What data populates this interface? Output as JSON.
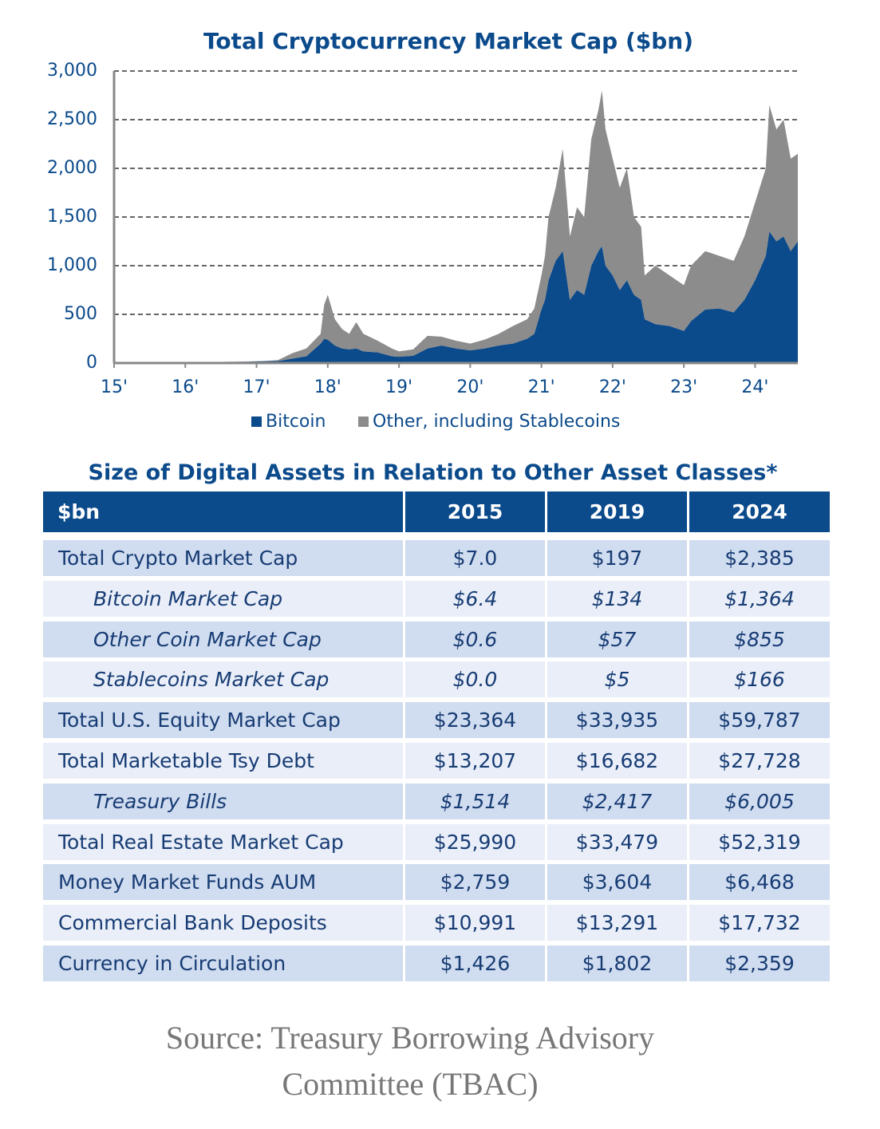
{
  "chart_data": {
    "type": "stacked_area",
    "title": "Total Cryptocurrency Market Cap ($bn)",
    "x": [
      2015.0,
      2016.0,
      2016.5,
      2017.0,
      2017.3,
      2017.5,
      2017.7,
      2017.9,
      2017.95,
      2018.0,
      2018.1,
      2018.2,
      2018.3,
      2018.4,
      2018.5,
      2018.7,
      2018.9,
      2019.0,
      2019.2,
      2019.4,
      2019.6,
      2019.8,
      2020.0,
      2020.2,
      2020.4,
      2020.6,
      2020.8,
      2020.9,
      2021.0,
      2021.05,
      2021.1,
      2021.2,
      2021.3,
      2021.4,
      2021.5,
      2021.6,
      2021.7,
      2021.8,
      2021.85,
      2021.9,
      2022.0,
      2022.1,
      2022.2,
      2022.3,
      2022.4,
      2022.45,
      2022.6,
      2022.8,
      2023.0,
      2023.1,
      2023.3,
      2023.5,
      2023.7,
      2023.85,
      2024.0,
      2024.15,
      2024.2,
      2024.3,
      2024.4,
      2024.5,
      2024.6
    ],
    "series": [
      {
        "name": "Bitcoin",
        "color": "#0b4a8b",
        "values": [
          6,
          6,
          10,
          16,
          20,
          45,
          70,
          200,
          250,
          240,
          180,
          150,
          140,
          150,
          120,
          110,
          70,
          65,
          75,
          150,
          180,
          150,
          130,
          150,
          180,
          200,
          250,
          300,
          550,
          650,
          850,
          1050,
          1150,
          650,
          750,
          700,
          1000,
          1150,
          1200,
          1000,
          900,
          750,
          850,
          700,
          650,
          450,
          400,
          380,
          330,
          430,
          550,
          560,
          520,
          650,
          850,
          1100,
          1350,
          1250,
          1300,
          1150,
          1250
        ]
      },
      {
        "name": "Other, including Stablecoins",
        "color": "#8c8c8c",
        "values": [
          1,
          1,
          2,
          2,
          10,
          55,
          80,
          100,
          350,
          460,
          270,
          200,
          160,
          270,
          180,
          120,
          80,
          55,
          65,
          130,
          90,
          80,
          70,
          90,
          120,
          180,
          200,
          260,
          350,
          450,
          650,
          750,
          1050,
          650,
          850,
          800,
          1300,
          1450,
          1600,
          1400,
          1200,
          1050,
          1150,
          800,
          750,
          450,
          600,
          520,
          470,
          570,
          600,
          540,
          530,
          650,
          800,
          900,
          1300,
          1150,
          1200,
          950,
          900
        ]
      }
    ],
    "xlim": [
      2015,
      2024.6
    ],
    "xticks": [
      {
        "value": 2015,
        "label": "15'"
      },
      {
        "value": 2016,
        "label": "16'"
      },
      {
        "value": 2017,
        "label": "17'"
      },
      {
        "value": 2018,
        "label": "18'"
      },
      {
        "value": 2019,
        "label": "19'"
      },
      {
        "value": 2020,
        "label": "20'"
      },
      {
        "value": 2021,
        "label": "21'"
      },
      {
        "value": 2022,
        "label": "22'"
      },
      {
        "value": 2023,
        "label": "23'"
      },
      {
        "value": 2024,
        "label": "24'"
      }
    ],
    "ylim": [
      0,
      3000
    ],
    "yticks": [
      0,
      500,
      {
        "value": 1000,
        "label": "1,000"
      },
      {
        "value": 1500,
        "label": "1,500"
      },
      {
        "value": 2000,
        "label": "2,000"
      },
      {
        "value": 2500,
        "label": "2,500"
      },
      {
        "value": 3000,
        "label": "3,000"
      }
    ],
    "grid": true,
    "legend": "bottom"
  },
  "table": {
    "title": "Size of Digital Assets in Relation to Other Asset Classes*",
    "header": [
      "$bn",
      "2015",
      "2019",
      "2024"
    ],
    "rows": [
      {
        "label": "Total Crypto Market Cap",
        "values": [
          "$7.0",
          "$197",
          "$2,385"
        ]
      },
      {
        "label": "Bitcoin Market Cap",
        "values": [
          "$6.4",
          "$134",
          "$1,364"
        ],
        "style": "italic"
      },
      {
        "label": "Other Coin Market Cap",
        "values": [
          "$0.6",
          "$57",
          "$855"
        ],
        "style": "italic"
      },
      {
        "label": "Stablecoins Market Cap",
        "values": [
          "$0.0",
          "$5",
          "$166"
        ],
        "style": "italic"
      },
      {
        "label": "Total U.S. Equity Market Cap",
        "values": [
          "$23,364",
          "$33,935",
          "$59,787"
        ]
      },
      {
        "label": "Total Marketable Tsy Debt",
        "values": [
          "$13,207",
          "$16,682",
          "$27,728"
        ]
      },
      {
        "label": "Treasury Bills",
        "values": [
          "$1,514",
          "$2,417",
          "$6,005"
        ],
        "style": "italic"
      },
      {
        "label": "Total Real Estate Market Cap",
        "values": [
          "$25,990",
          "$33,479",
          "$52,319"
        ]
      },
      {
        "label": "Money Market Funds AUM",
        "values": [
          "$2,759",
          "$3,604",
          "$6,468"
        ]
      },
      {
        "label": "Commercial Bank Deposits",
        "values": [
          "$10,991",
          "$13,291",
          "$17,732"
        ]
      },
      {
        "label": "Currency in Circulation",
        "values": [
          "$1,426",
          "$1,802",
          "$2,359"
        ]
      }
    ]
  },
  "source": "Source: Treasury Borrowing Advisory Committee (TBAC)"
}
